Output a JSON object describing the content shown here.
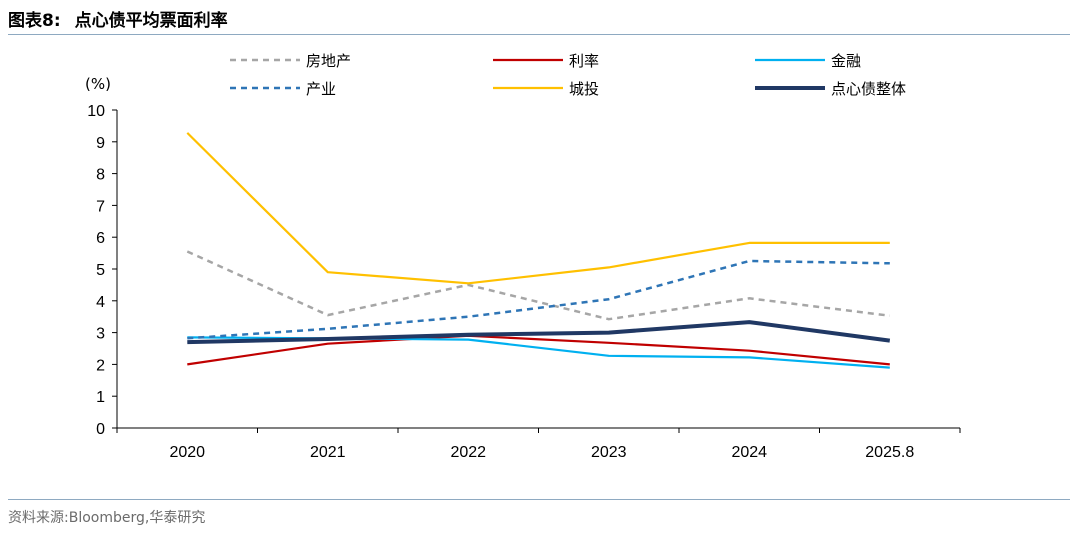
{
  "header": {
    "figure_label": "图表8:",
    "figure_title": "点心债平均票面利率"
  },
  "footer": {
    "source": "资料来源:Bloomberg,华泰研究"
  },
  "chart_data": {
    "type": "line",
    "title": "点心债平均票面利率",
    "ylabel": "(%)",
    "xlabel": "",
    "ylim": [
      0,
      10
    ],
    "yticks": [
      "0",
      "1",
      "2",
      "3",
      "4",
      "5",
      "6",
      "7",
      "8",
      "9",
      "10"
    ],
    "categories": [
      "2020",
      "2021",
      "2022",
      "2023",
      "2024",
      "2025.8"
    ],
    "legend_position": "top",
    "series": [
      {
        "name": "房地产",
        "color": "#a6a6a6",
        "style": "dashed",
        "values": [
          5.55,
          3.55,
          4.5,
          3.42,
          4.08,
          3.53
        ]
      },
      {
        "name": "利率",
        "color": "#c00000",
        "style": "solid",
        "values": [
          2.0,
          2.65,
          2.9,
          2.68,
          2.43,
          2.0
        ]
      },
      {
        "name": "金融",
        "color": "#00b0f0",
        "style": "solid",
        "values": [
          2.85,
          2.82,
          2.78,
          2.27,
          2.22,
          1.9
        ]
      },
      {
        "name": "产业",
        "color": "#2e75b6",
        "style": "dashed",
        "values": [
          2.82,
          3.12,
          3.5,
          4.05,
          5.25,
          5.18
        ]
      },
      {
        "name": "城投",
        "color": "#ffc000",
        "style": "solid",
        "values": [
          9.28,
          4.9,
          4.55,
          5.05,
          5.82,
          5.82
        ]
      },
      {
        "name": "点心债整体",
        "color": "#203864",
        "style": "solid-thick",
        "values": [
          2.7,
          2.8,
          2.93,
          3.0,
          3.33,
          2.75
        ]
      }
    ]
  }
}
